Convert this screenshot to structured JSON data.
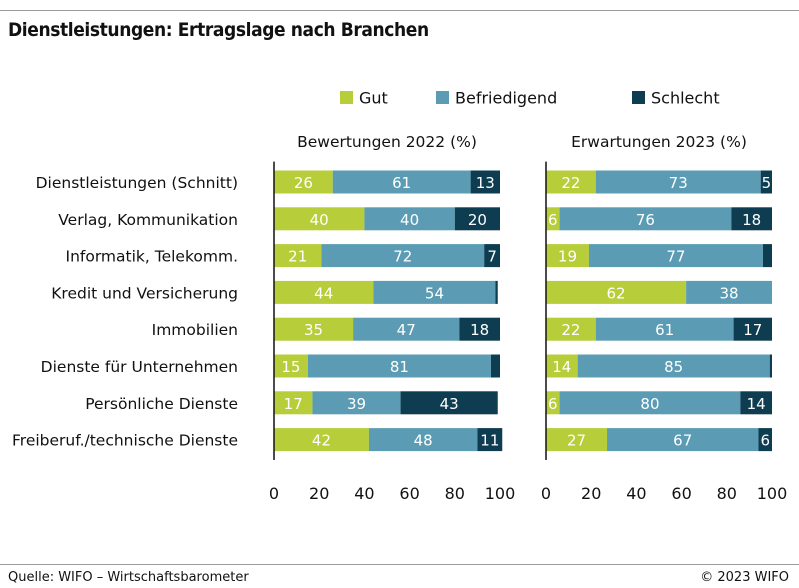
{
  "title": "Dienstleistungen: Ertragslage nach Branchen",
  "source": "Quelle: WIFO – Wirtschaftsbarometer",
  "copyright": "© 2023 WIFO",
  "colors": {
    "Gut": "#b7cd3a",
    "Befriedigend": "#5b9cb4",
    "Schlecht": "#0e3d52"
  },
  "chart_data": {
    "type": "bar",
    "orientation": "horizontal",
    "stacked": true,
    "legend": [
      "Gut",
      "Befriedigend",
      "Schlecht"
    ],
    "legend_position": "top",
    "categories": [
      "Dienstleistungen (Schnitt)",
      "Verlag, Kommunikation",
      "Informatik, Telekomm.",
      "Kredit und Versicherung",
      "Immobilien",
      "Dienste für Unternehmen",
      "Persönliche Dienste",
      "Freiberuf./technische Dienste"
    ],
    "panels": [
      {
        "title": "Bewertungen 2022 (%)",
        "xlim": [
          0,
          100
        ],
        "xticks": [
          0,
          20,
          40,
          60,
          80,
          100
        ],
        "series": [
          {
            "name": "Gut",
            "values": [
              26,
              40,
              21,
              44,
              35,
              15,
              17,
              42
            ]
          },
          {
            "name": "Befriedigend",
            "values": [
              61,
              40,
              72,
              54,
              47,
              81,
              39,
              48
            ]
          },
          {
            "name": "Schlecht",
            "values": [
              13,
              20,
              7,
              1,
              18,
              4,
              43,
              11
            ]
          }
        ],
        "labels": [
          [
            "26",
            "61",
            "13"
          ],
          [
            "40",
            "40",
            "20"
          ],
          [
            "21",
            "72",
            "7"
          ],
          [
            "44",
            "54",
            ""
          ],
          [
            "35",
            "47",
            "18"
          ],
          [
            "15",
            "81",
            ""
          ],
          [
            "17",
            "39",
            "43"
          ],
          [
            "42",
            "48",
            "11"
          ]
        ]
      },
      {
        "title": "Erwartungen 2023 (%)",
        "xlim": [
          0,
          100
        ],
        "xticks": [
          0,
          20,
          40,
          60,
          80,
          100
        ],
        "series": [
          {
            "name": "Gut",
            "values": [
              22,
              6,
              19,
              62,
              22,
              14,
              6,
              27
            ]
          },
          {
            "name": "Befriedigend",
            "values": [
              73,
              76,
              77,
              38,
              61,
              85,
              80,
              67
            ]
          },
          {
            "name": "Schlecht",
            "values": [
              5,
              18,
              4,
              0,
              17,
              1,
              14,
              6
            ]
          }
        ],
        "labels": [
          [
            "22",
            "73",
            "5"
          ],
          [
            "6",
            "76",
            "18"
          ],
          [
            "19",
            "77",
            ""
          ],
          [
            "62",
            "38",
            ""
          ],
          [
            "22",
            "61",
            "17"
          ],
          [
            "14",
            "85",
            ""
          ],
          [
            "6",
            "80",
            "14"
          ],
          [
            "27",
            "67",
            "6"
          ]
        ]
      }
    ]
  }
}
